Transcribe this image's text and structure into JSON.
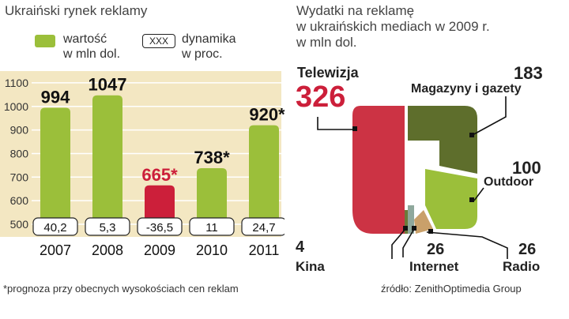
{
  "left_title": "Ukraiński rynek reklamy",
  "right_title": [
    "Wydatki na  reklamę",
    "w ukraińskich mediach w 2009 r.",
    "w mln dol."
  ],
  "legend": {
    "value_label": [
      "wartość",
      "w mln dol."
    ],
    "dynamics_box": "XXX",
    "dynamics_label": [
      "dynamika",
      "w proc."
    ]
  },
  "footnote": "*prognoza przy obecnych wysokościach cen reklam",
  "source": "źródło: ZenithOptimedia Group",
  "colors": {
    "bar": "#9bbf3a",
    "bar_highlight": "#cc1f3a",
    "panel": "#f3e7c2",
    "grid": "#ffffff"
  },
  "chart_data": [
    {
      "type": "bar",
      "title": "Ukraiński rynek reklamy",
      "categories": [
        "2007",
        "2008",
        "2009",
        "2010",
        "2011"
      ],
      "values": [
        994,
        1047,
        665,
        738,
        920
      ],
      "value_labels": [
        "994",
        "1047",
        "665*",
        "738*",
        "920*"
      ],
      "dynamics": [
        "40,2",
        "5,3",
        "-36,5",
        "11",
        "24,7"
      ],
      "highlight_index": 2,
      "y_ticks": [
        500,
        600,
        700,
        800,
        900,
        1000,
        1100
      ],
      "ylim": [
        500,
        1150
      ],
      "grid": true
    },
    {
      "type": "pie",
      "title": "Wydatki na reklamę w ukraińskich mediach w 2009 r. w mln dol.",
      "slices": [
        {
          "label": "Telewizja",
          "value": 326,
          "value_label": "326",
          "color": "#cc3344"
        },
        {
          "label": "Magazyny i gazety",
          "value": 183,
          "value_label": "183",
          "color": "#5e6e2c"
        },
        {
          "label": "Outdoor",
          "value": 100,
          "value_label": "100",
          "color": "#9bbf3a"
        },
        {
          "label": "Radio",
          "value": 26,
          "value_label": "26",
          "color": "#c9a06a"
        },
        {
          "label": "Internet",
          "value": 26,
          "value_label": "26",
          "color": "#8fa89c"
        },
        {
          "label": "Kina",
          "value": 4,
          "value_label": "4",
          "color": "#6b7a3a"
        }
      ]
    }
  ]
}
